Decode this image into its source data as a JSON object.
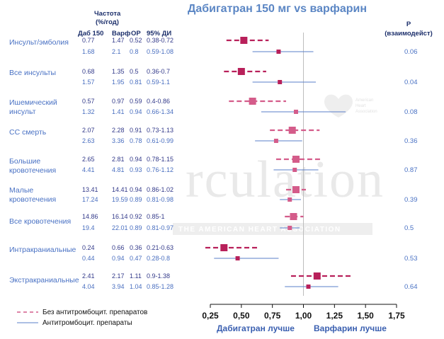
{
  "colors": {
    "title": "#5b86c4",
    "label": "#4a72c4",
    "header": "#1c2f6b",
    "no_antiplatelet": "#b8205a",
    "no_antiplatelet_light": "#d45c8a",
    "antiplatelet": "#5a7fc9",
    "axis": "#111111",
    "watermark": "#e9e9e9"
  },
  "watermark": {
    "main": "rculation",
    "sub": "THE AMERICAN HEART ASSOCIATION",
    "badge_icon": "heart-torch-icon",
    "badge_lines": [
      "American",
      "Heart",
      "Association"
    ]
  },
  "chart_data": {
    "type": "forest",
    "title": "Дабигатран 150 мг vs варфарин",
    "header": {
      "rate_title_line1": "Частота",
      "rate_title_line2": "(%/год)",
      "col_dab": "Даб 150",
      "col_warf": "Варф",
      "col_or": "ОР",
      "col_ci": "95% ДИ",
      "p_title_line1": "P",
      "p_title_line2": "(взаимодейст)"
    },
    "x_axis": {
      "min": 0.25,
      "max": 1.75,
      "ticks": [
        0.25,
        0.5,
        0.75,
        1.0,
        1.25,
        1.5,
        1.75
      ],
      "tick_labels": [
        "0,25",
        "0,50",
        "0,75",
        "1,00",
        "1,25",
        "1,50",
        "1,75"
      ],
      "reference_line": 1.0,
      "label_left": "Дабигатран лучше",
      "label_right": "Варфарин лучше"
    },
    "legend": [
      {
        "name": "Без антитромбоцит. препаратов",
        "style": "dashed"
      },
      {
        "name": "Антитромбоцит. препараты",
        "style": "solid"
      }
    ],
    "outcomes": [
      {
        "label": [
          "Инсульт/эмболия"
        ],
        "p": "0.06",
        "rows": [
          {
            "group": "no_antiplatelet",
            "dab": "0.77",
            "warf": "1.47",
            "or": "0.52",
            "ci": "0.38-0.72",
            "or_value": 0.52,
            "ci_low": 0.38,
            "ci_high": 0.72,
            "shade": "dark"
          },
          {
            "group": "antiplatelet",
            "dab": "1.68",
            "warf": "2.1",
            "or": "0.8",
            "ci": "0.59-1.08",
            "or_value": 0.8,
            "ci_low": 0.59,
            "ci_high": 1.08,
            "shade": "dark"
          }
        ]
      },
      {
        "label": [
          "Все инсульты"
        ],
        "p": "0.04",
        "rows": [
          {
            "group": "no_antiplatelet",
            "dab": "0.68",
            "warf": "1.35",
            "or": "0.5",
            "ci": "0.36-0.7",
            "or_value": 0.5,
            "ci_low": 0.36,
            "ci_high": 0.7,
            "shade": "dark"
          },
          {
            "group": "antiplatelet",
            "dab": "1.57",
            "warf": "1.95",
            "or": "0.81",
            "ci": "0.59-1.1",
            "or_value": 0.81,
            "ci_low": 0.59,
            "ci_high": 1.1,
            "shade": "dark"
          }
        ]
      },
      {
        "label": [
          "Ишемический",
          "инсульт"
        ],
        "p": "0.08",
        "rows": [
          {
            "group": "no_antiplatelet",
            "dab": "0.57",
            "warf": "0.97",
            "or": "0.59",
            "ci": "0.4-0.86",
            "or_value": 0.59,
            "ci_low": 0.4,
            "ci_high": 0.86,
            "shade": "light"
          },
          {
            "group": "antiplatelet",
            "dab": "1.32",
            "warf": "1.41",
            "or": "0.94",
            "ci": "0.66-1.34",
            "or_value": 0.94,
            "ci_low": 0.66,
            "ci_high": 1.34,
            "shade": "light"
          }
        ]
      },
      {
        "label": [
          "СС смерть"
        ],
        "p": "0.36",
        "rows": [
          {
            "group": "no_antiplatelet",
            "dab": "2.07",
            "warf": "2.28",
            "or": "0.91",
            "ci": "0.73-1.13",
            "or_value": 0.91,
            "ci_low": 0.73,
            "ci_high": 1.13,
            "shade": "light"
          },
          {
            "group": "antiplatelet",
            "dab": "2.63",
            "warf": "3.36",
            "or": "0.78",
            "ci": "0.61-0.99",
            "or_value": 0.78,
            "ci_low": 0.61,
            "ci_high": 0.99,
            "shade": "light"
          }
        ]
      },
      {
        "label": [
          "Большие",
          "кровотечения"
        ],
        "p": "0.87",
        "rows": [
          {
            "group": "no_antiplatelet",
            "dab": "2.65",
            "warf": "2.81",
            "or": "0.94",
            "ci": "0.78-1.15",
            "or_value": 0.94,
            "ci_low": 0.78,
            "ci_high": 1.15,
            "shade": "light"
          },
          {
            "group": "antiplatelet",
            "dab": "4.41",
            "warf": "4.81",
            "or": "0.93",
            "ci": "0.76-1.12",
            "or_value": 0.93,
            "ci_low": 0.76,
            "ci_high": 1.12,
            "shade": "light"
          }
        ]
      },
      {
        "label": [
          "Малые",
          "кровотечения"
        ],
        "p": "0.39",
        "rows": [
          {
            "group": "no_antiplatelet",
            "dab": "13.41",
            "warf": "14.41",
            "or": "0.94",
            "ci": "0.86-1.02",
            "or_value": 0.94,
            "ci_low": 0.86,
            "ci_high": 1.02,
            "shade": "light"
          },
          {
            "group": "antiplatelet",
            "dab": "17.24",
            "warf": "19.59",
            "or": "0.89",
            "ci": "0.81-0.98",
            "or_value": 0.89,
            "ci_low": 0.81,
            "ci_high": 0.98,
            "shade": "light"
          }
        ]
      },
      {
        "label": [
          "Все кровотечения"
        ],
        "p": "0.5",
        "rows": [
          {
            "group": "no_antiplatelet",
            "dab": "14.86",
            "warf": "16.14",
            "or": "0.92",
            "ci": "0.85-1",
            "or_value": 0.92,
            "ci_low": 0.85,
            "ci_high": 1.0,
            "shade": "light"
          },
          {
            "group": "antiplatelet",
            "dab": "19.4",
            "warf": "22.01",
            "or": "0.89",
            "ci": "0.81-0.97",
            "or_value": 0.89,
            "ci_low": 0.81,
            "ci_high": 0.97,
            "shade": "light"
          }
        ]
      },
      {
        "label": [
          "Интракраниальные"
        ],
        "p": "0.53",
        "rows": [
          {
            "group": "no_antiplatelet",
            "dab": "0.24",
            "warf": "0.66",
            "or": "0.36",
            "ci": "0.21-0.63",
            "or_value": 0.36,
            "ci_low": 0.21,
            "ci_high": 0.63,
            "shade": "dark"
          },
          {
            "group": "antiplatelet",
            "dab": "0.44",
            "warf": "0.94",
            "or": "0.47",
            "ci": "0.28-0.8",
            "or_value": 0.47,
            "ci_low": 0.28,
            "ci_high": 0.8,
            "shade": "dark"
          }
        ]
      },
      {
        "label": [
          "Экстракраниальные"
        ],
        "p": "0.64",
        "rows": [
          {
            "group": "no_antiplatelet",
            "dab": "2.41",
            "warf": "2.17",
            "or": "1.11",
            "ci": "0.9-1.38",
            "or_value": 1.11,
            "ci_low": 0.9,
            "ci_high": 1.38,
            "shade": "dark"
          },
          {
            "group": "antiplatelet",
            "dab": "4.04",
            "warf": "3.94",
            "or": "1.04",
            "ci": "0.85-1.28",
            "or_value": 1.04,
            "ci_low": 0.85,
            "ci_high": 1.28,
            "shade": "dark"
          }
        ]
      }
    ]
  }
}
